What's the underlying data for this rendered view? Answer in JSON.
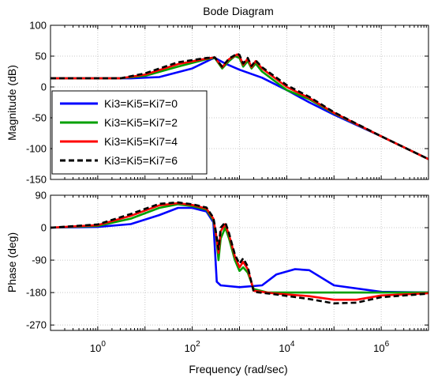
{
  "chart_data": {
    "type": "line",
    "title": "Bode Diagram",
    "xlabel": "Frequency (rad/sec)",
    "x_scale": "log",
    "xlim": [
      0.1,
      10000000
    ],
    "x_ticks": [
      {
        "value": 1,
        "base": "10",
        "exp": "0"
      },
      {
        "value": 100,
        "base": "10",
        "exp": "2"
      },
      {
        "value": 10000,
        "base": "10",
        "exp": "4"
      },
      {
        "value": 1000000,
        "base": "10",
        "exp": "6"
      }
    ],
    "grid": true,
    "legend": {
      "placement": "left-middle of magnitude panel"
    },
    "series": [
      {
        "name": "Ki3=Ki5=Ki7=0",
        "color": "#0000ff",
        "dash": "solid"
      },
      {
        "name": "Ki3=Ki5=Ki7=2",
        "color": "#00a000",
        "dash": "solid"
      },
      {
        "name": "Ki3=Ki5=Ki7=4",
        "color": "#ff0000",
        "dash": "solid"
      },
      {
        "name": "Ki3=Ki5=Ki7=6",
        "color": "#000000",
        "dash": "dashed"
      }
    ],
    "panels": [
      {
        "id": "magnitude",
        "ylabel": "Magnitude (dB)",
        "ylim": [
          -150,
          100
        ],
        "y_ticks": [
          100,
          50,
          0,
          -50,
          -100,
          -150
        ],
        "series_points": [
          [
            [
              0.1,
              14
            ],
            [
              5,
              14
            ],
            [
              20,
              16
            ],
            [
              100,
              30
            ],
            [
              250,
              45
            ],
            [
              300,
              47
            ],
            [
              500,
              38
            ],
            [
              1000,
              28
            ],
            [
              3000,
              15
            ],
            [
              10000,
              -5
            ],
            [
              30000,
              -25
            ],
            [
              100000,
              -45
            ],
            [
              1000000,
              -80
            ],
            [
              10000000,
              -117
            ]
          ],
          [
            [
              0.1,
              14
            ],
            [
              3,
              14
            ],
            [
              10,
              18
            ],
            [
              50,
              33
            ],
            [
              200,
              45
            ],
            [
              300,
              47
            ],
            [
              430,
              30
            ],
            [
              600,
              42
            ],
            [
              800,
              50
            ],
            [
              1000,
              47
            ],
            [
              1200,
              33
            ],
            [
              1500,
              42
            ],
            [
              1800,
              30
            ],
            [
              2200,
              38
            ],
            [
              3000,
              25
            ],
            [
              10000,
              -5
            ],
            [
              30000,
              -20
            ],
            [
              100000,
              -43
            ],
            [
              1000000,
              -80
            ],
            [
              10000000,
              -117
            ]
          ],
          [
            [
              0.1,
              14
            ],
            [
              3,
              14
            ],
            [
              10,
              20
            ],
            [
              50,
              37
            ],
            [
              200,
              46
            ],
            [
              300,
              48
            ],
            [
              430,
              32
            ],
            [
              600,
              45
            ],
            [
              900,
              53
            ],
            [
              1000,
              50
            ],
            [
              1200,
              36
            ],
            [
              1500,
              46
            ],
            [
              1800,
              32
            ],
            [
              2200,
              42
            ],
            [
              3000,
              30
            ],
            [
              10000,
              0
            ],
            [
              30000,
              -18
            ],
            [
              100000,
              -42
            ],
            [
              1000000,
              -80
            ],
            [
              10000000,
              -117
            ]
          ],
          [
            [
              0.1,
              14
            ],
            [
              3,
              14
            ],
            [
              10,
              22
            ],
            [
              50,
              40
            ],
            [
              200,
              47
            ],
            [
              300,
              48
            ],
            [
              430,
              33
            ],
            [
              600,
              46
            ],
            [
              900,
              54
            ],
            [
              1000,
              52
            ],
            [
              1200,
              38
            ],
            [
              1500,
              47
            ],
            [
              1800,
              34
            ],
            [
              2200,
              43
            ],
            [
              3000,
              32
            ],
            [
              10000,
              3
            ],
            [
              30000,
              -16
            ],
            [
              100000,
              -41
            ],
            [
              1000000,
              -80
            ],
            [
              10000000,
              -117
            ]
          ]
        ]
      },
      {
        "id": "phase",
        "ylabel": "Phase (deg)",
        "ylim": [
          -285,
          90
        ],
        "y_ticks": [
          90,
          0,
          -90,
          -180,
          -270
        ],
        "series_points": [
          [
            [
              0.1,
              0
            ],
            [
              1,
              2
            ],
            [
              5,
              10
            ],
            [
              20,
              35
            ],
            [
              50,
              55
            ],
            [
              100,
              55
            ],
            [
              200,
              45
            ],
            [
              280,
              15
            ],
            [
              330,
              -150
            ],
            [
              400,
              -160
            ],
            [
              1000,
              -165
            ],
            [
              3000,
              -160
            ],
            [
              6000,
              -130
            ],
            [
              15000,
              -115
            ],
            [
              30000,
              -118
            ],
            [
              100000,
              -160
            ],
            [
              1000000,
              -178
            ],
            [
              10000000,
              -180
            ]
          ],
          [
            [
              0.1,
              0
            ],
            [
              1,
              5
            ],
            [
              5,
              25
            ],
            [
              20,
              55
            ],
            [
              50,
              65
            ],
            [
              100,
              60
            ],
            [
              200,
              50
            ],
            [
              280,
              20
            ],
            [
              320,
              -25
            ],
            [
              360,
              -90
            ],
            [
              400,
              -30
            ],
            [
              500,
              0
            ],
            [
              600,
              -30
            ],
            [
              800,
              -90
            ],
            [
              1000,
              -120
            ],
            [
              1200,
              -110
            ],
            [
              1500,
              -125
            ],
            [
              2000,
              -170
            ],
            [
              4000,
              -180
            ],
            [
              10000000,
              -180
            ]
          ],
          [
            [
              0.1,
              0
            ],
            [
              1,
              7
            ],
            [
              5,
              33
            ],
            [
              20,
              62
            ],
            [
              50,
              68
            ],
            [
              100,
              63
            ],
            [
              200,
              53
            ],
            [
              280,
              25
            ],
            [
              320,
              -20
            ],
            [
              360,
              -70
            ],
            [
              400,
              -10
            ],
            [
              500,
              10
            ],
            [
              600,
              -20
            ],
            [
              800,
              -80
            ],
            [
              1000,
              -110
            ],
            [
              1200,
              -95
            ],
            [
              1500,
              -115
            ],
            [
              2000,
              -175
            ],
            [
              5000,
              -182
            ],
            [
              30000,
              -190
            ],
            [
              100000,
              -200
            ],
            [
              300000,
              -200
            ],
            [
              1000000,
              -188
            ],
            [
              10000000,
              -182
            ]
          ],
          [
            [
              0.1,
              0
            ],
            [
              1,
              9
            ],
            [
              5,
              38
            ],
            [
              20,
              66
            ],
            [
              50,
              70
            ],
            [
              100,
              65
            ],
            [
              200,
              56
            ],
            [
              280,
              28
            ],
            [
              320,
              -15
            ],
            [
              360,
              -60
            ],
            [
              400,
              0
            ],
            [
              500,
              15
            ],
            [
              600,
              -15
            ],
            [
              800,
              -75
            ],
            [
              1000,
              -100
            ],
            [
              1200,
              -85
            ],
            [
              1500,
              -108
            ],
            [
              2000,
              -178
            ],
            [
              5000,
              -184
            ],
            [
              30000,
              -198
            ],
            [
              100000,
              -210
            ],
            [
              300000,
              -208
            ],
            [
              1000000,
              -193
            ],
            [
              10000000,
              -183
            ]
          ]
        ]
      }
    ]
  }
}
